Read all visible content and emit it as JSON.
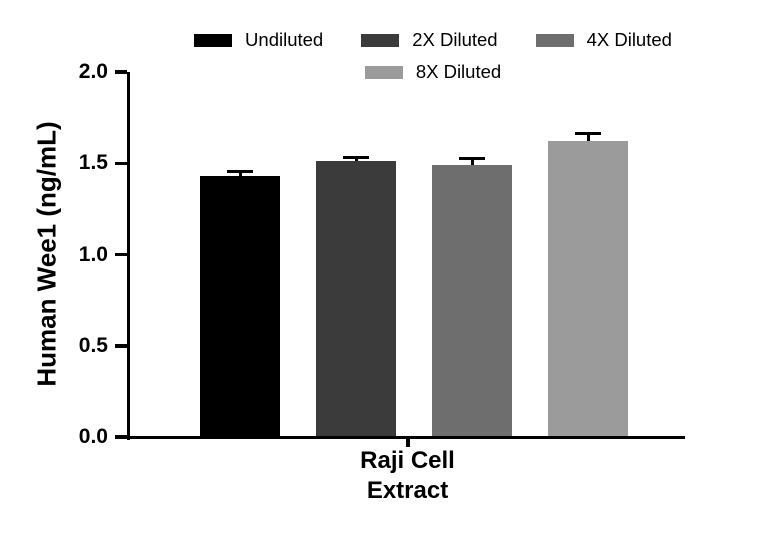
{
  "chart_data": {
    "type": "bar",
    "categories": [
      "Undiluted",
      "2X Diluted",
      "4X Diluted",
      "8X Diluted"
    ],
    "values": [
      1.43,
      1.51,
      1.49,
      1.62
    ],
    "errors": [
      0.015,
      0.015,
      0.03,
      0.035
    ],
    "colors": [
      "#000000",
      "#3b3b3b",
      "#6e6e6e",
      "#9b9b9b"
    ],
    "ylabel": "Human Wee1 (ng/mL)",
    "group_label_lines": [
      "Raji Cell",
      "Extract"
    ],
    "ylim": [
      0,
      2.0
    ],
    "yticks": [
      0,
      0.5,
      1.0,
      1.5,
      2.0
    ],
    "ytick_labels": [
      "0.0",
      "0.5",
      "1.0",
      "1.5",
      "2.0"
    ],
    "legend_position": "top",
    "grid": false,
    "error_bar_style": "caps above bars"
  }
}
